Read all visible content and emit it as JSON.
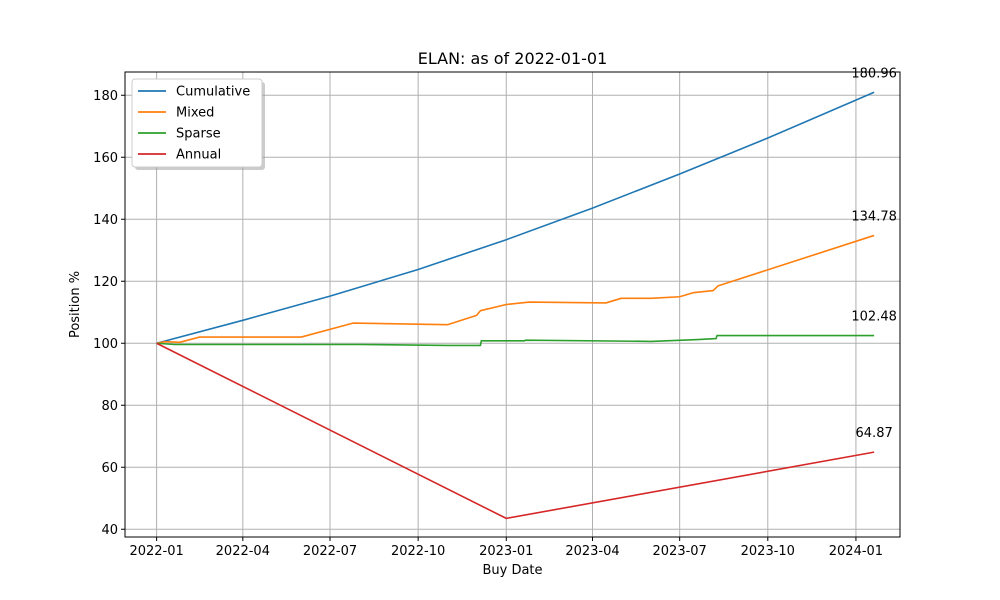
{
  "chart_data": {
    "type": "line",
    "title": "ELAN: as of 2022-01-01",
    "xlabel": "Buy Date",
    "ylabel": "Position %",
    "x_ticks": [
      "2022-01",
      "2022-04",
      "2022-07",
      "2022-10",
      "2023-01",
      "2023-04",
      "2023-07",
      "2023-10",
      "2024-01"
    ],
    "y_ticks": [
      40,
      60,
      80,
      100,
      120,
      140,
      160,
      180
    ],
    "xlim": [
      "2021-11-29",
      "2024-02-16"
    ],
    "ylim": [
      37.5,
      187.5
    ],
    "grid": true,
    "legend_position": "top-left",
    "series": [
      {
        "name": "Cumulative",
        "color": "#1f77b4",
        "end_label": "180.96",
        "points": [
          [
            "2022-01-01",
            100
          ],
          [
            "2022-04-01",
            107.4
          ],
          [
            "2022-07-01",
            115.2
          ],
          [
            "2022-10-01",
            123.8
          ],
          [
            "2023-01-01",
            133.4
          ],
          [
            "2023-04-01",
            143.6
          ],
          [
            "2023-07-01",
            154.6
          ],
          [
            "2023-10-01",
            166.2
          ],
          [
            "2024-01-20",
            180.96
          ]
        ]
      },
      {
        "name": "Mixed",
        "color": "#ff7f0e",
        "end_label": "134.78",
        "points": [
          [
            "2022-01-01",
            100
          ],
          [
            "2022-01-10",
            100.5
          ],
          [
            "2022-01-25",
            100.3
          ],
          [
            "2022-02-15",
            102
          ],
          [
            "2022-06-01",
            102
          ],
          [
            "2022-07-25",
            106.5
          ],
          [
            "2022-11-01",
            106
          ],
          [
            "2022-12-01",
            109
          ],
          [
            "2022-12-05",
            110.5
          ],
          [
            "2023-01-01",
            112.5
          ],
          [
            "2023-01-25",
            113.3
          ],
          [
            "2023-04-15",
            113
          ],
          [
            "2023-05-01",
            114.5
          ],
          [
            "2023-06-01",
            114.5
          ],
          [
            "2023-07-01",
            115
          ],
          [
            "2023-07-15",
            116.3
          ],
          [
            "2023-08-05",
            117
          ],
          [
            "2023-08-10",
            118.5
          ],
          [
            "2024-01-20",
            134.78
          ]
        ]
      },
      {
        "name": "Sparse",
        "color": "#2ca02c",
        "end_label": "102.48",
        "points": [
          [
            "2022-01-01",
            100
          ],
          [
            "2022-01-20",
            99.6
          ],
          [
            "2022-06-01",
            99.6
          ],
          [
            "2022-08-01",
            99.6
          ],
          [
            "2022-11-01",
            99.3
          ],
          [
            "2022-12-05",
            99.3
          ],
          [
            "2022-12-06",
            100.8
          ],
          [
            "2023-01-20",
            100.8
          ],
          [
            "2023-01-21",
            101
          ],
          [
            "2023-06-01",
            100.6
          ],
          [
            "2023-07-20",
            101.2
          ],
          [
            "2023-08-08",
            101.5
          ],
          [
            "2023-08-09",
            102.48
          ],
          [
            "2024-01-20",
            102.48
          ]
        ]
      },
      {
        "name": "Annual",
        "color": "#d62728",
        "end_label": "64.87",
        "points": [
          [
            "2022-01-01",
            100
          ],
          [
            "2023-01-01",
            43.5
          ],
          [
            "2024-01-20",
            64.87
          ]
        ]
      }
    ]
  }
}
